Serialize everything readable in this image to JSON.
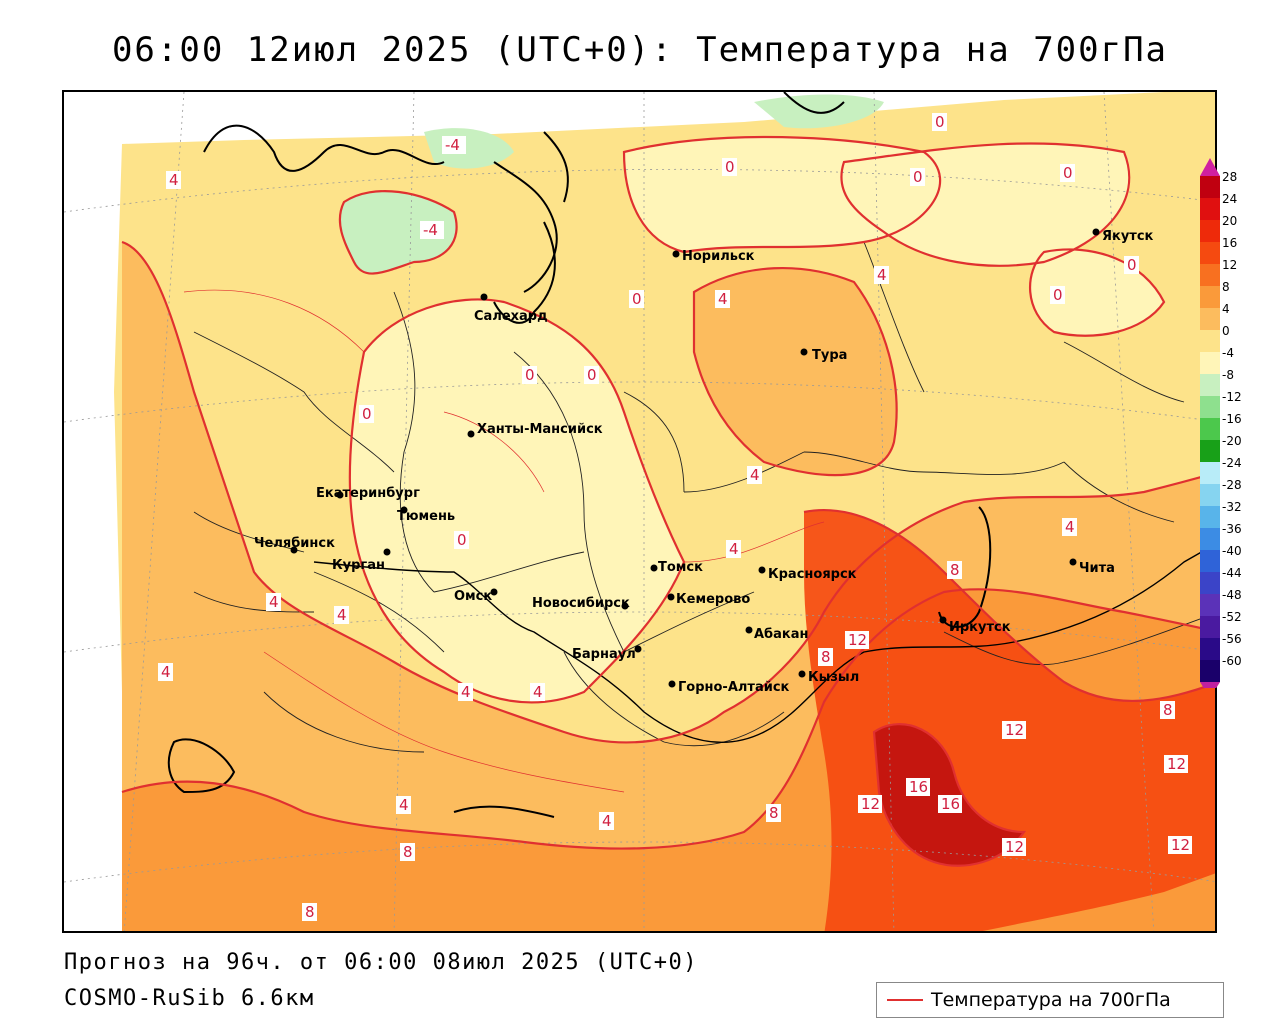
{
  "header": {
    "title": "06:00 12июл 2025 (UTC+0): Температура на 700гПа"
  },
  "footer": {
    "forecast": "Прогноз на 96ч. от 06:00 08июл 2025 (UTC+0)",
    "model": "COSMO-RuSib 6.6км"
  },
  "legend": {
    "label": "Температура на 700гПа",
    "line_color": "#e03030"
  },
  "colorbar": {
    "ticks": [
      "28",
      "24",
      "20",
      "16",
      "12",
      "8",
      "4",
      "0",
      "-4",
      "-8",
      "-12",
      "-16",
      "-20",
      "-24",
      "-28",
      "-32",
      "-36",
      "-40",
      "-44",
      "-48",
      "-52",
      "-56",
      "-60"
    ],
    "colors": [
      "#c00010",
      "#e01010",
      "#ee2a0a",
      "#f54a10",
      "#f87020",
      "#fa9a3a",
      "#fcbc5e",
      "#fde38a",
      "#fff5b8",
      "#c8f0c0",
      "#8ee08e",
      "#4cc84c",
      "#18a018",
      "#b8ecf8",
      "#86d4f0",
      "#58b4ea",
      "#3c8ce4",
      "#2f63d8",
      "#3b44c8",
      "#5b32b8",
      "#4a1aa0",
      "#2a0a88",
      "#1a006a"
    ]
  },
  "cities": [
    {
      "name": "Норильск"
    },
    {
      "name": "Якутск"
    },
    {
      "name": "Салехард"
    },
    {
      "name": "Тура"
    },
    {
      "name": "Ханты-Мансийск"
    },
    {
      "name": "Екатеринбург"
    },
    {
      "name": "Тюмень"
    },
    {
      "name": "Челябинск"
    },
    {
      "name": "Курган"
    },
    {
      "name": "Омск"
    },
    {
      "name": "Новосибирск"
    },
    {
      "name": "Томск"
    },
    {
      "name": "Кемерово"
    },
    {
      "name": "Красноярск"
    },
    {
      "name": "Абакан"
    },
    {
      "name": "Барнаул"
    },
    {
      "name": "Горно-Алтайск"
    },
    {
      "name": "Кызыл"
    },
    {
      "name": "Иркутск"
    },
    {
      "name": "Чита"
    }
  ],
  "isolines": [
    {
      "value": "-4"
    },
    {
      "value": "-4"
    },
    {
      "value": "0"
    },
    {
      "value": "0"
    },
    {
      "value": "0"
    },
    {
      "value": "0"
    },
    {
      "value": "0"
    },
    {
      "value": "0"
    },
    {
      "value": "0"
    },
    {
      "value": "0"
    },
    {
      "value": "0"
    },
    {
      "value": "0"
    },
    {
      "value": "0"
    },
    {
      "value": "4"
    },
    {
      "value": "4"
    },
    {
      "value": "4"
    },
    {
      "value": "4"
    },
    {
      "value": "4"
    },
    {
      "value": "4"
    },
    {
      "value": "4"
    },
    {
      "value": "4"
    },
    {
      "value": "4"
    },
    {
      "value": "4"
    },
    {
      "value": "4"
    },
    {
      "value": "4"
    },
    {
      "value": "4"
    },
    {
      "value": "8"
    },
    {
      "value": "8"
    },
    {
      "value": "8"
    },
    {
      "value": "8"
    },
    {
      "value": "8"
    },
    {
      "value": "8"
    },
    {
      "value": "12"
    },
    {
      "value": "12"
    },
    {
      "value": "12"
    },
    {
      "value": "12"
    },
    {
      "value": "12"
    },
    {
      "value": "12"
    },
    {
      "value": "16"
    },
    {
      "value": "16"
    }
  ]
}
